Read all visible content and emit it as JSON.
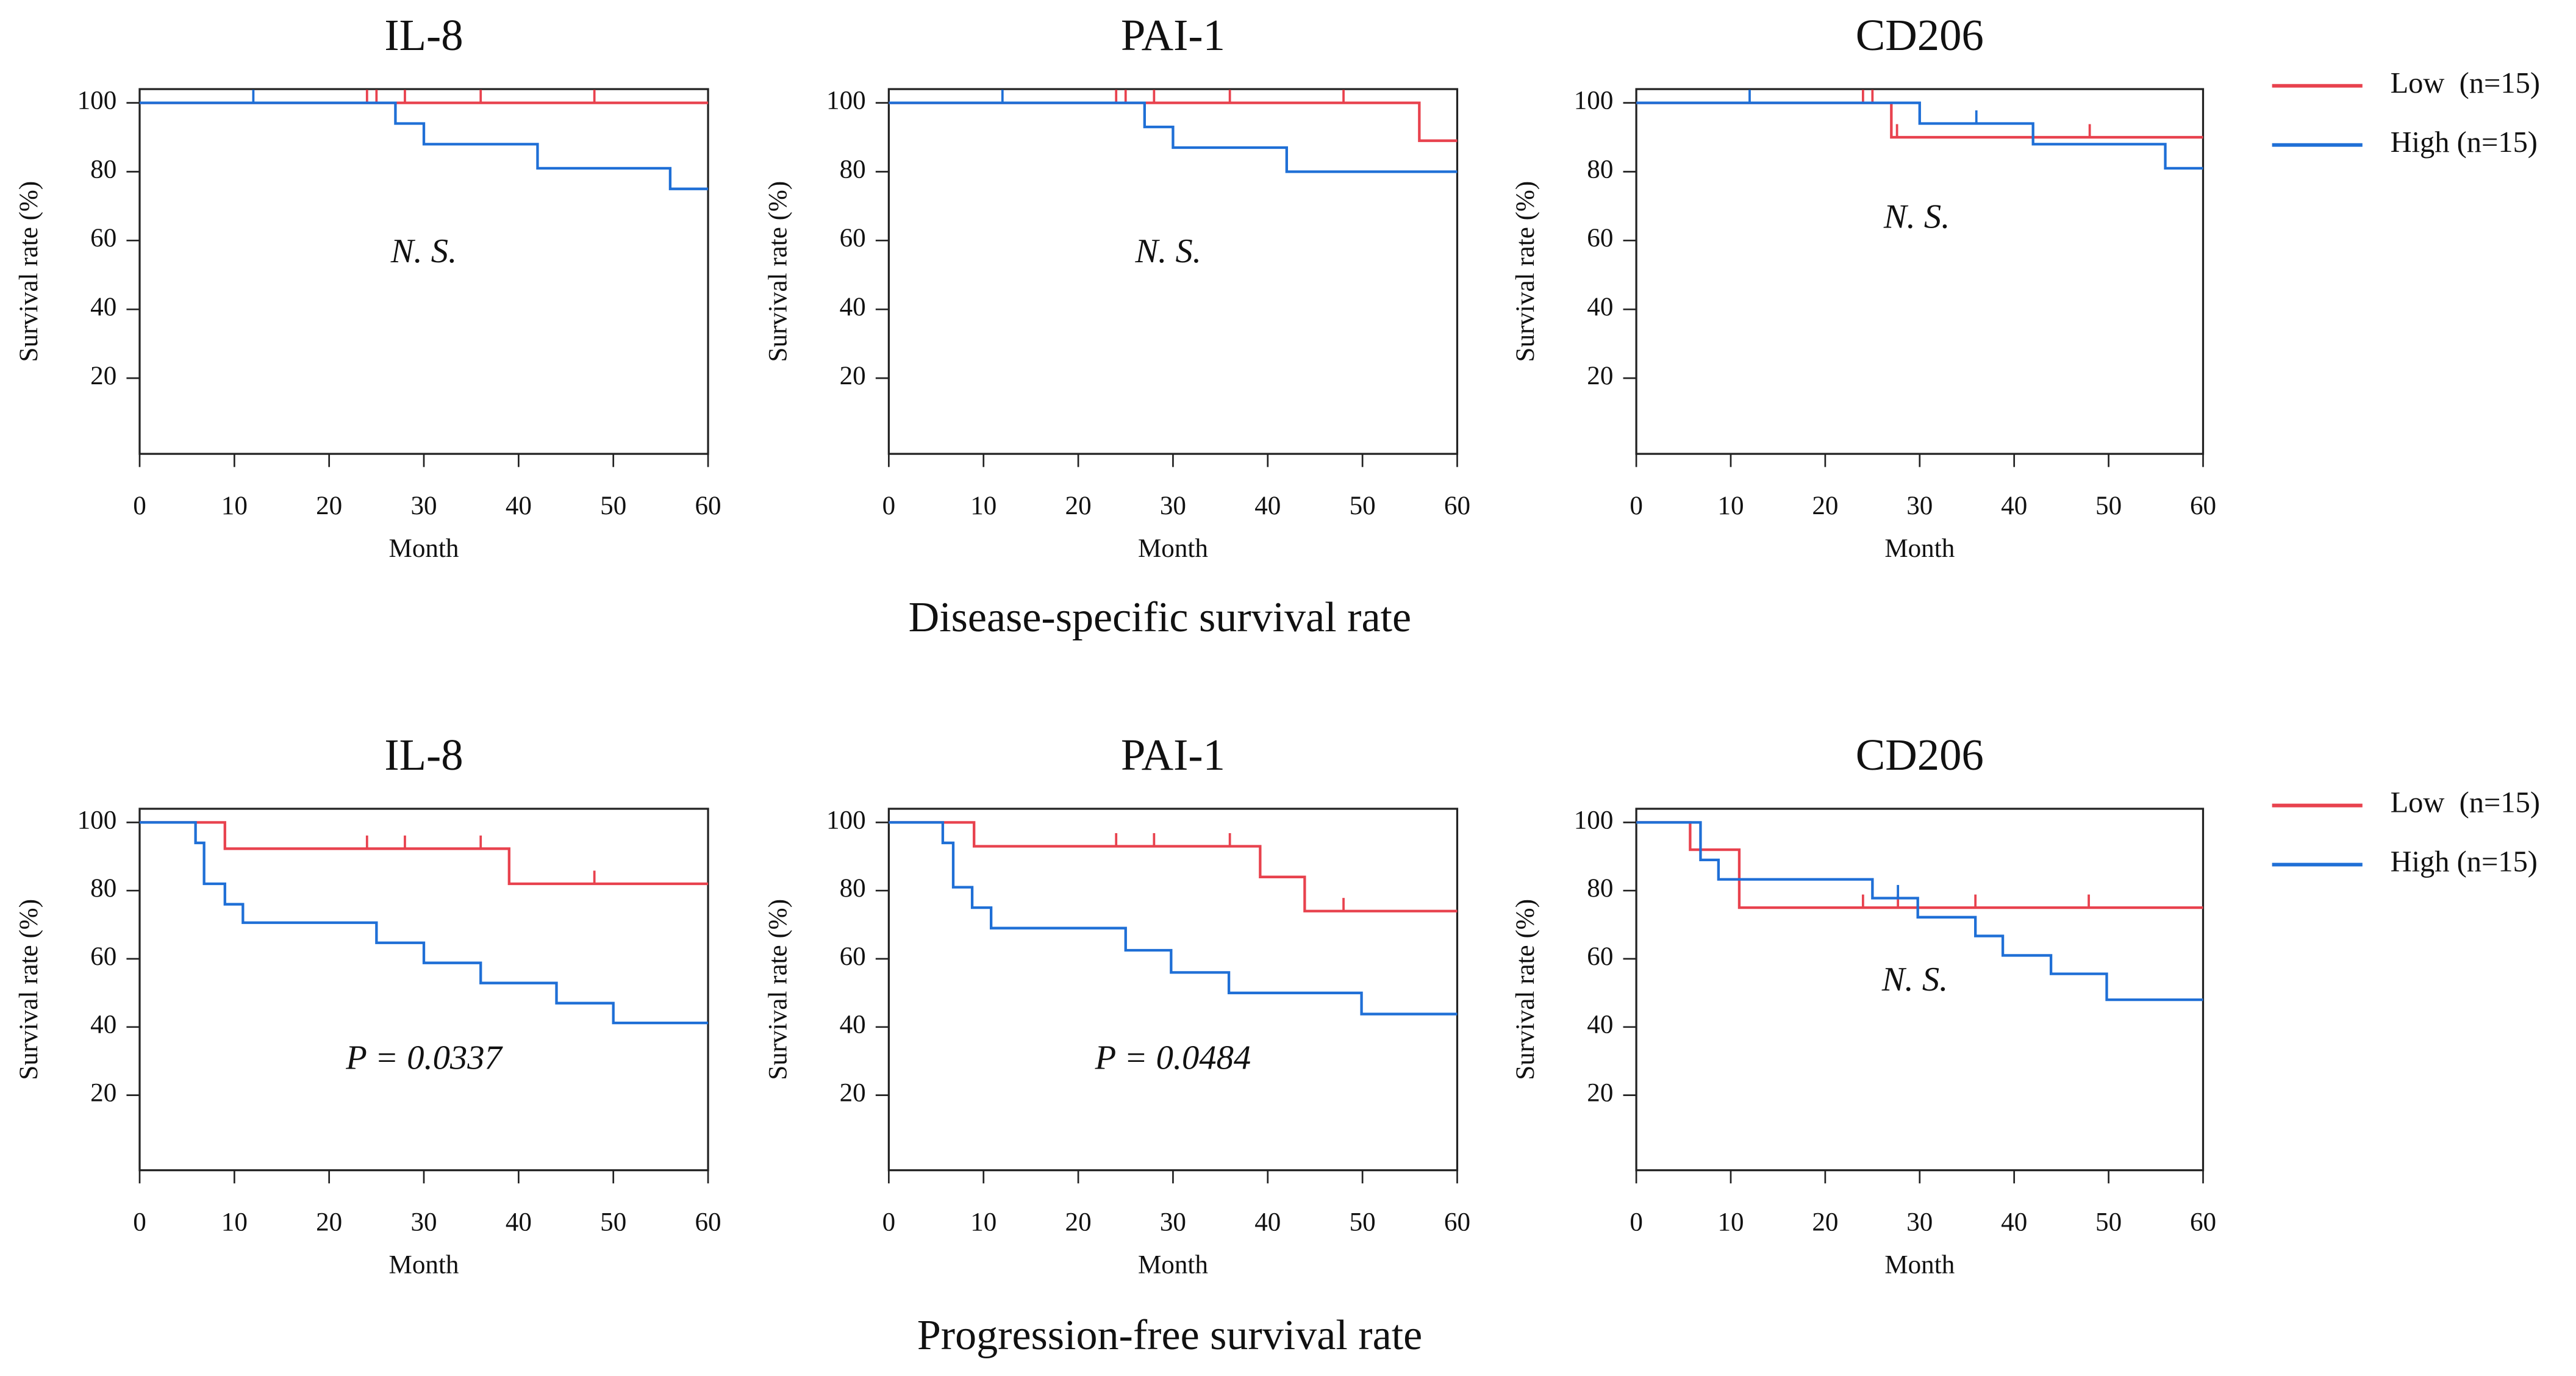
{
  "row_titles": [
    "Disease-specific survival rate",
    "Progression-free survival rate"
  ],
  "chart_data": [
    {
      "type": "step",
      "title": "IL-8",
      "xlabel": "Month",
      "ylabel": "Survival rate (%)",
      "annotation": "N. S.",
      "xlim": [
        0,
        60
      ],
      "xticks": [
        0,
        10,
        20,
        30,
        40,
        50,
        60
      ],
      "ylim": [
        -2,
        104
      ],
      "yticks": [
        20,
        40,
        60,
        80,
        100
      ],
      "series": [
        {
          "name": "Low  (n=15)",
          "color": "#e8424e",
          "x": [
            0,
            60
          ],
          "values": [
            100,
            100
          ],
          "censored": [
            24,
            25,
            28,
            36,
            48
          ]
        },
        {
          "name": "High (n=15)",
          "color": "#1f6fd6",
          "x": [
            0,
            27,
            30,
            42,
            56,
            60
          ],
          "values": [
            100,
            94,
            88,
            81,
            75,
            75
          ],
          "censored": [
            12
          ]
        }
      ]
    },
    {
      "type": "step",
      "title": "PAI-1",
      "xlabel": "Month",
      "ylabel": "Survival rate (%)",
      "annotation": "N. S.",
      "xlim": [
        0,
        60
      ],
      "xticks": [
        0,
        10,
        20,
        30,
        40,
        50,
        60
      ],
      "ylim": [
        -2,
        104
      ],
      "yticks": [
        20,
        40,
        60,
        80,
        100
      ],
      "series": [
        {
          "name": "Low  (n=15)",
          "color": "#e8424e",
          "x": [
            0,
            56,
            60
          ],
          "values": [
            100,
            89,
            89
          ],
          "censored": [
            24,
            25,
            28,
            36,
            48
          ]
        },
        {
          "name": "High (n=15)",
          "color": "#1f6fd6",
          "x": [
            0,
            27,
            30,
            42,
            60
          ],
          "values": [
            100,
            93,
            87,
            80,
            80
          ],
          "censored": [
            12
          ]
        }
      ]
    },
    {
      "type": "step",
      "title": "CD206",
      "xlabel": "Month",
      "ylabel": "Survival rate (%)",
      "annotation": "N. S.",
      "xlim": [
        0,
        60
      ],
      "xticks": [
        0,
        10,
        20,
        30,
        40,
        50,
        60
      ],
      "ylim": [
        -2,
        104
      ],
      "yticks": [
        20,
        40,
        60,
        80,
        100
      ],
      "legend": "outside-right",
      "series": [
        {
          "name": "Low  (n=15)",
          "color": "#e8424e",
          "x": [
            0,
            27,
            60
          ],
          "values": [
            100,
            90,
            90
          ],
          "censored": [
            24,
            25,
            27.6,
            48
          ]
        },
        {
          "name": "High (n=15)",
          "color": "#1f6fd6",
          "x": [
            0,
            30,
            42,
            56,
            60
          ],
          "values": [
            100,
            94,
            88,
            81,
            81
          ],
          "censored": [
            12,
            36
          ]
        }
      ]
    },
    {
      "type": "step",
      "title": "IL-8",
      "xlabel": "Month",
      "ylabel": "Survival rate (%)",
      "annotation": "P = 0.0337",
      "xlim": [
        0,
        60
      ],
      "xticks": [
        0,
        10,
        20,
        30,
        40,
        50,
        60
      ],
      "ylim": [
        -2,
        104
      ],
      "yticks": [
        20,
        40,
        60,
        80,
        100
      ],
      "series": [
        {
          "name": "Low  (n=15)",
          "color": "#e8424e",
          "x": [
            0,
            9,
            39,
            60
          ],
          "values": [
            100,
            92.3,
            82,
            82
          ],
          "censored": [
            24,
            28,
            36,
            48
          ]
        },
        {
          "name": "High (n=15)",
          "color": "#1f6fd6",
          "x": [
            0,
            5.9,
            6.8,
            9,
            10.9,
            25,
            30,
            36,
            44,
            50,
            60
          ],
          "values": [
            100,
            94,
            82,
            76,
            70.6,
            64.7,
            58.8,
            52.9,
            47,
            41.2,
            41.2
          ],
          "censored": []
        }
      ]
    },
    {
      "type": "step",
      "title": "PAI-1",
      "xlabel": "Month",
      "ylabel": "Survival rate (%)",
      "annotation": "P = 0.0484",
      "xlim": [
        0,
        60
      ],
      "xticks": [
        0,
        10,
        20,
        30,
        40,
        50,
        60
      ],
      "ylim": [
        -2,
        104
      ],
      "yticks": [
        20,
        40,
        60,
        80,
        100
      ],
      "series": [
        {
          "name": "Low  (n=15)",
          "color": "#e8424e",
          "x": [
            0,
            9,
            39.2,
            43.9,
            60
          ],
          "values": [
            100,
            93,
            84,
            74,
            74
          ],
          "censored": [
            24,
            28,
            36,
            48
          ]
        },
        {
          "name": "High (n=15)",
          "color": "#1f6fd6",
          "x": [
            0,
            5.7,
            6.8,
            8.8,
            10.8,
            25,
            29.8,
            35.9,
            49.9,
            60
          ],
          "values": [
            100,
            94,
            81,
            75,
            69,
            62.5,
            56,
            50,
            43.8,
            43.8
          ],
          "censored": []
        }
      ]
    },
    {
      "type": "step",
      "title": "CD206",
      "xlabel": "Month",
      "ylabel": "Survival rate (%)",
      "annotation": "N. S.",
      "xlim": [
        0,
        60
      ],
      "xticks": [
        0,
        10,
        20,
        30,
        40,
        50,
        60
      ],
      "ylim": [
        -2,
        104
      ],
      "yticks": [
        20,
        40,
        60,
        80,
        100
      ],
      "legend": "outside-right",
      "series": [
        {
          "name": "Low  (n=15)",
          "color": "#e8424e",
          "x": [
            0,
            5.7,
            10.9,
            60
          ],
          "values": [
            100,
            92,
            75,
            75
          ],
          "censored": [
            24,
            27.7,
            35.9,
            47.9
          ]
        },
        {
          "name": "High (n=15)",
          "color": "#1f6fd6",
          "x": [
            0,
            6.8,
            8.7,
            25,
            29.8,
            35.9,
            38.8,
            43.9,
            49.8,
            60
          ],
          "values": [
            100,
            89,
            83.3,
            77.8,
            72.2,
            66.7,
            61,
            55.6,
            48,
            48
          ],
          "censored": [
            27.7
          ]
        }
      ]
    }
  ]
}
